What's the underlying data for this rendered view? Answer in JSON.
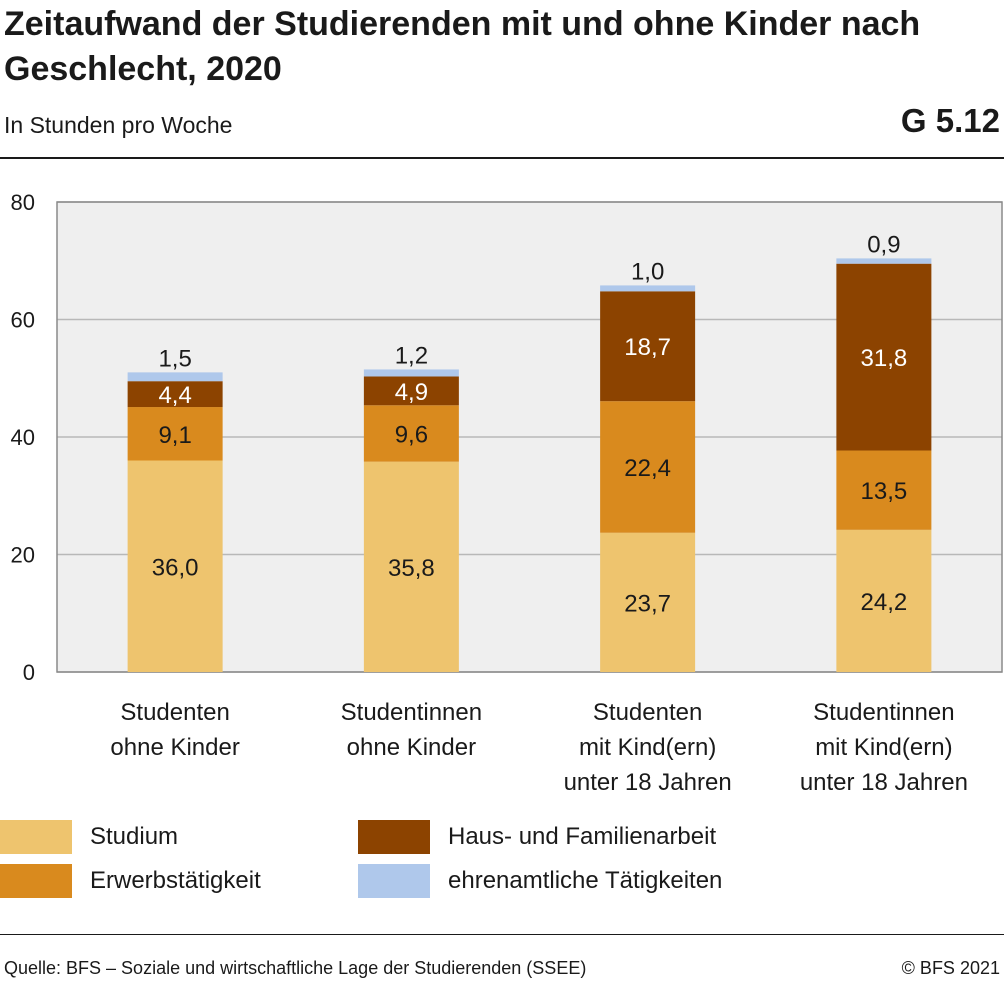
{
  "header": {
    "title": "Zeitaufwand der Studierenden mit und ohne Kinder nach Geschlecht, 2020",
    "subtitle": "In Stunden pro Woche",
    "chart_id": "G 5.12"
  },
  "footer": {
    "source": "Quelle: BFS – Soziale und wirtschaftliche Lage der Studierenden (SSEE)",
    "copyright": "© BFS 2021"
  },
  "chart_data": {
    "type": "bar",
    "stacked": true,
    "title": "Zeitaufwand der Studierenden mit und ohne Kinder nach Geschlecht, 2020",
    "subtitle": "In Stunden pro Woche",
    "categories": [
      [
        "Studenten",
        "ohne Kinder"
      ],
      [
        "Studentinnen",
        "ohne Kinder"
      ],
      [
        "Studenten",
        "mit Kind(ern)",
        "unter 18 Jahren"
      ],
      [
        "Studentinnen",
        "mit Kind(ern)",
        "unter 18 Jahren"
      ]
    ],
    "ylim": [
      0,
      80
    ],
    "yticks": [
      0,
      20,
      40,
      60,
      80
    ],
    "grid": true,
    "legend_position": "bottom",
    "series": [
      {
        "name": "Studium",
        "color": "#EEC46E",
        "label_color": "#1a1a1a",
        "values": [
          36.0,
          35.8,
          23.7,
          24.2
        ],
        "labels": [
          "36,0",
          "35,8",
          "23,7",
          "24,2"
        ]
      },
      {
        "name": "Erwerbstätigkeit",
        "color": "#D98A1E",
        "label_color": "#1a1a1a",
        "values": [
          9.1,
          9.6,
          22.4,
          13.5
        ],
        "labels": [
          "9,1",
          "9,6",
          "22,4",
          "13,5"
        ]
      },
      {
        "name": "Haus- und Familienarbeit",
        "color": "#8C4300",
        "label_color": "#ffffff",
        "values": [
          4.4,
          4.9,
          18.7,
          31.8
        ],
        "labels": [
          "4,4",
          "4,9",
          "18,7",
          "31,8"
        ]
      },
      {
        "name": "ehrenamtliche Tätigkeiten",
        "color": "#AFC8EB",
        "label_color": "#1a1a1a",
        "values": [
          1.5,
          1.2,
          1.0,
          0.9
        ],
        "labels": [
          "1,5",
          "1,2",
          "1,0",
          "0,9"
        ]
      }
    ],
    "colors": {
      "plot_background": "#EFEFEF",
      "grid": "#B8B8B8"
    }
  }
}
